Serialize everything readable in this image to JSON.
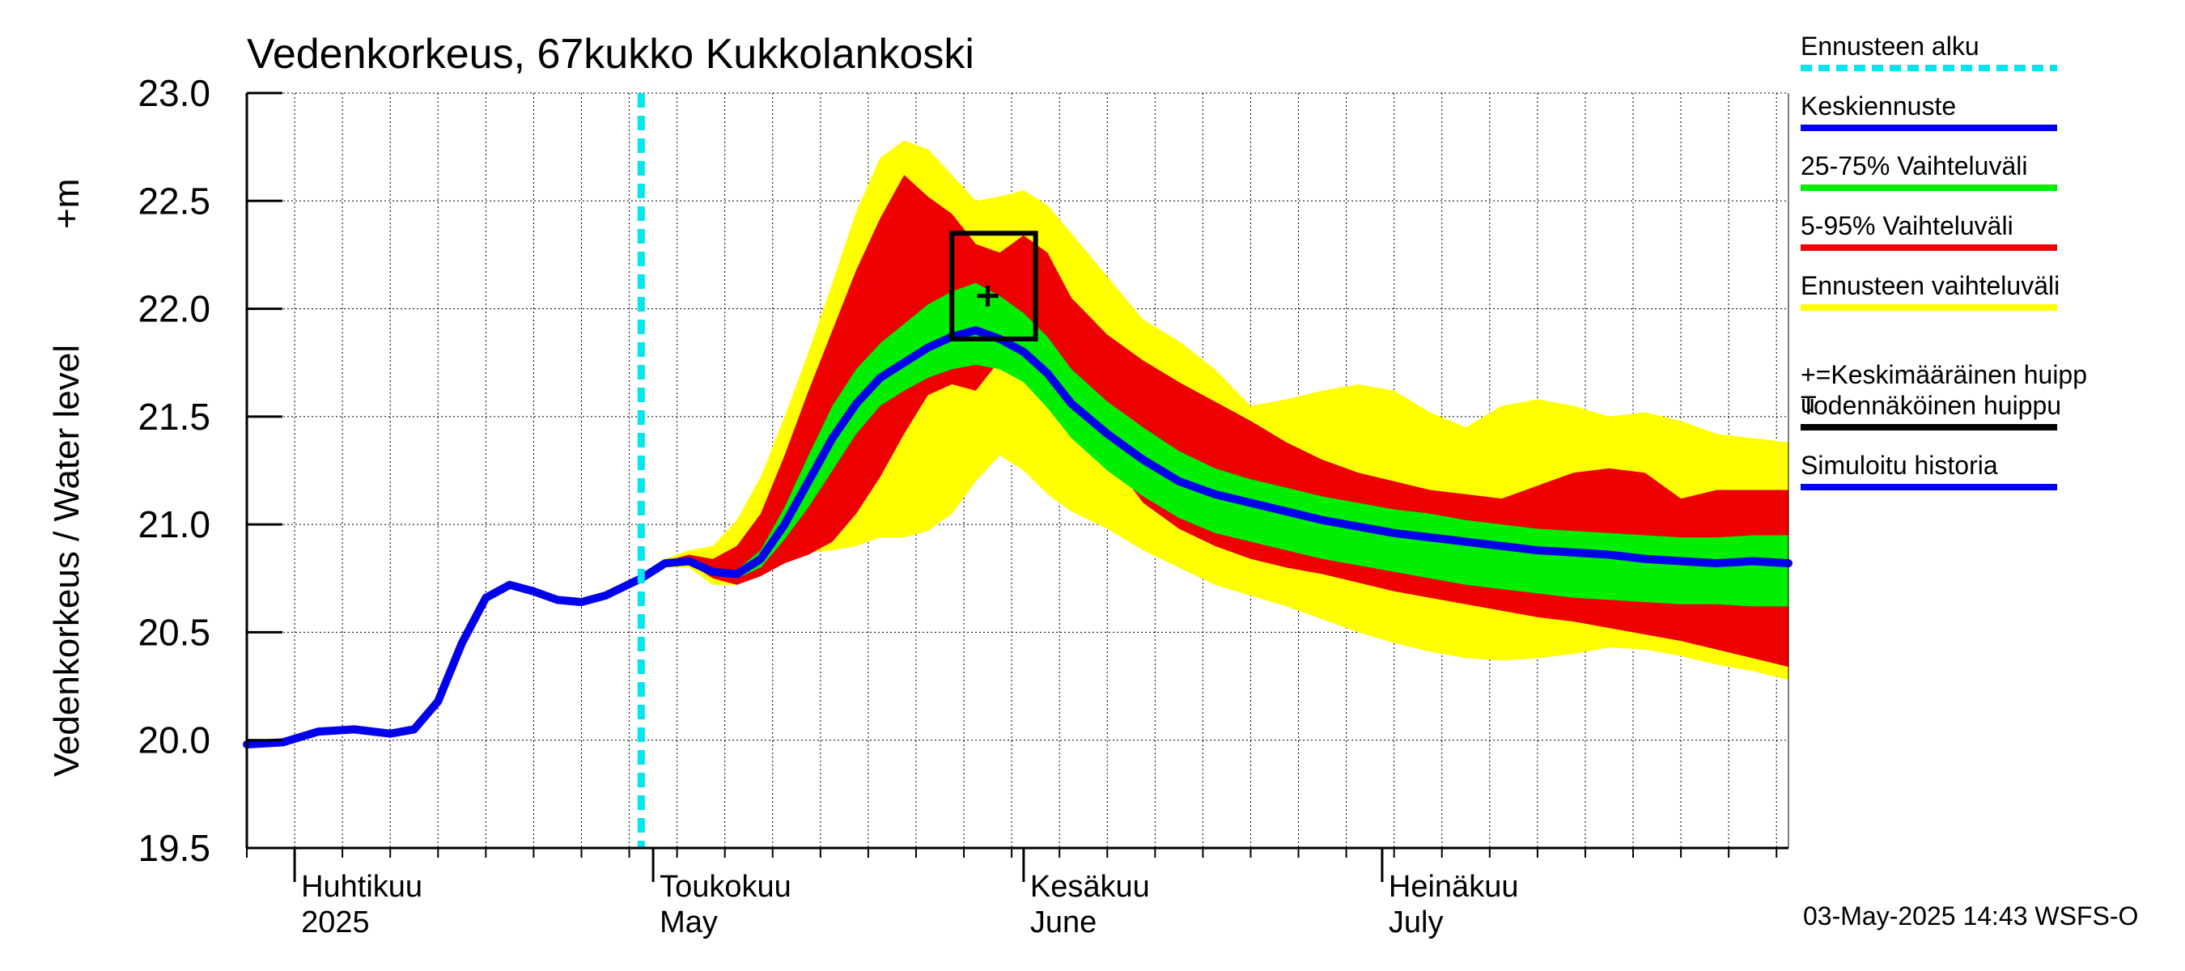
{
  "chart_data": {
    "type": "area",
    "title": "Vedenkorkeus, 67kukko Kukkolankoski",
    "ylabel": "Vedenkorkeus / Water level",
    "yunit": "+m",
    "ylim": [
      19.5,
      23.0
    ],
    "yticks": [
      "19.5",
      "20.0",
      "20.5",
      "21.0",
      "21.5",
      "22.0",
      "22.5",
      "23.0"
    ],
    "xlim": [
      "2025-03-28",
      "2025-08-04"
    ],
    "grid": true,
    "month_labels": [
      {
        "date": "2025-04-01",
        "fi": "Huhtikuu",
        "en": "2025"
      },
      {
        "date": "2025-05-01",
        "fi": "Toukokuu",
        "en": "May"
      },
      {
        "date": "2025-06-01",
        "fi": "Kesäkuu",
        "en": "June"
      },
      {
        "date": "2025-07-01",
        "fi": "Heinäkuu",
        "en": "July"
      }
    ],
    "forecast_start": "2025-04-30",
    "colors": {
      "forecast_start": "#00e5ee",
      "median": "#0000ee",
      "band_25_75": "#00ee00",
      "band_5_95": "#ee0000",
      "band_full": "#ffff00",
      "peak": "#000000",
      "history": "#0000ee"
    },
    "history": {
      "name": "Simuloitu historia",
      "x": [
        "2025-03-28",
        "2025-03-31",
        "2025-04-03",
        "2025-04-06",
        "2025-04-09",
        "2025-04-11",
        "2025-04-13",
        "2025-04-15",
        "2025-04-17",
        "2025-04-19",
        "2025-04-21",
        "2025-04-23",
        "2025-04-25",
        "2025-04-27",
        "2025-04-30"
      ],
      "y": [
        19.98,
        19.99,
        20.04,
        20.05,
        20.03,
        20.05,
        20.18,
        20.45,
        20.66,
        20.72,
        20.69,
        20.65,
        20.64,
        20.67,
        20.75
      ]
    },
    "forecast": {
      "x": [
        "2025-04-30",
        "2025-05-02",
        "2025-05-04",
        "2025-05-06",
        "2025-05-08",
        "2025-05-10",
        "2025-05-12",
        "2025-05-14",
        "2025-05-16",
        "2025-05-18",
        "2025-05-20",
        "2025-05-22",
        "2025-05-24",
        "2025-05-26",
        "2025-05-28",
        "2025-05-30",
        "2025-06-01",
        "2025-06-03",
        "2025-06-05",
        "2025-06-08",
        "2025-06-11",
        "2025-06-14",
        "2025-06-17",
        "2025-06-20",
        "2025-06-23",
        "2025-06-26",
        "2025-06-29",
        "2025-07-02",
        "2025-07-05",
        "2025-07-08",
        "2025-07-11",
        "2025-07-14",
        "2025-07-17",
        "2025-07-20",
        "2025-07-23",
        "2025-07-26",
        "2025-07-29",
        "2025-08-01",
        "2025-08-04"
      ],
      "median": [
        20.75,
        20.82,
        20.83,
        20.78,
        20.77,
        20.84,
        21.0,
        21.2,
        21.4,
        21.56,
        21.68,
        21.75,
        21.82,
        21.87,
        21.9,
        21.86,
        21.8,
        21.7,
        21.56,
        21.42,
        21.3,
        21.2,
        21.14,
        21.1,
        21.06,
        21.02,
        20.99,
        20.96,
        20.94,
        20.92,
        20.9,
        20.88,
        20.87,
        20.86,
        20.84,
        20.83,
        20.82,
        20.83,
        20.82
      ],
      "p25": [
        20.75,
        20.82,
        20.83,
        20.77,
        20.75,
        20.8,
        20.93,
        21.08,
        21.25,
        21.42,
        21.55,
        21.62,
        21.68,
        21.72,
        21.74,
        21.72,
        21.66,
        21.54,
        21.4,
        21.25,
        21.13,
        21.03,
        20.96,
        20.92,
        20.88,
        20.84,
        20.81,
        20.78,
        20.75,
        20.72,
        20.7,
        20.68,
        20.66,
        20.65,
        20.64,
        20.63,
        20.63,
        20.62,
        20.62
      ],
      "p75": [
        20.75,
        20.82,
        20.84,
        20.79,
        20.79,
        20.88,
        21.08,
        21.32,
        21.55,
        21.72,
        21.84,
        21.93,
        22.02,
        22.08,
        22.12,
        22.06,
        21.98,
        21.87,
        21.72,
        21.57,
        21.45,
        21.34,
        21.26,
        21.21,
        21.17,
        21.13,
        21.1,
        21.07,
        21.05,
        21.02,
        21.0,
        20.98,
        20.97,
        20.96,
        20.95,
        20.94,
        20.94,
        20.95,
        20.95
      ],
      "p5": [
        20.75,
        20.81,
        20.82,
        20.75,
        20.72,
        20.76,
        20.82,
        20.86,
        20.92,
        21.05,
        21.22,
        21.42,
        21.6,
        21.65,
        21.62,
        21.76,
        21.72,
        21.64,
        21.52,
        21.32,
        21.1,
        20.98,
        20.9,
        20.84,
        20.8,
        20.77,
        20.73,
        20.69,
        20.66,
        20.63,
        20.6,
        20.57,
        20.55,
        20.52,
        20.49,
        20.46,
        20.42,
        20.38,
        20.34
      ],
      "p95": [
        20.75,
        20.83,
        20.86,
        20.84,
        20.9,
        21.05,
        21.32,
        21.62,
        21.9,
        22.18,
        22.42,
        22.62,
        22.52,
        22.44,
        22.3,
        22.26,
        22.34,
        22.26,
        22.05,
        21.88,
        21.76,
        21.66,
        21.57,
        21.48,
        21.38,
        21.3,
        21.24,
        21.2,
        21.16,
        21.14,
        21.12,
        21.18,
        21.24,
        21.26,
        21.24,
        21.12,
        21.16,
        21.16,
        21.16
      ],
      "min": [
        20.75,
        20.8,
        20.8,
        20.72,
        20.72,
        20.82,
        20.85,
        20.87,
        20.88,
        20.9,
        20.94,
        20.94,
        20.97,
        21.05,
        21.2,
        21.32,
        21.25,
        21.14,
        21.06,
        20.98,
        20.88,
        20.8,
        20.72,
        20.67,
        20.62,
        20.56,
        20.5,
        20.45,
        20.41,
        20.38,
        20.37,
        20.38,
        20.4,
        20.43,
        20.42,
        20.39,
        20.35,
        20.32,
        20.28
      ],
      "max": [
        20.75,
        20.84,
        20.88,
        20.9,
        21.02,
        21.22,
        21.5,
        21.8,
        22.12,
        22.45,
        22.7,
        22.78,
        22.74,
        22.62,
        22.5,
        22.52,
        22.55,
        22.48,
        22.35,
        22.15,
        21.95,
        21.85,
        21.72,
        21.55,
        21.58,
        21.62,
        21.65,
        21.62,
        21.52,
        21.45,
        21.55,
        21.58,
        21.55,
        21.5,
        21.52,
        21.48,
        21.42,
        21.4,
        21.38
      ]
    },
    "mean_peak": {
      "date": "2025-05-29",
      "value": 22.06
    },
    "probable_peak_box": {
      "date_from": "2025-05-26",
      "date_to": "2025-06-02",
      "value_low": 21.86,
      "value_high": 22.35
    },
    "legend": [
      {
        "label": "Ennusteen alku",
        "kind": "dashed",
        "color": "#00e5ee"
      },
      {
        "label": "Keskiennuste",
        "kind": "line",
        "color": "#0000ee"
      },
      {
        "label": "25-75% Vaihteluväli",
        "kind": "line",
        "color": "#00ee00"
      },
      {
        "label": "5-95% Vaihteluväli",
        "kind": "line",
        "color": "#ee0000"
      },
      {
        "label": "Ennusteen vaihteluväli",
        "kind": "line",
        "color": "#ffff00"
      },
      {
        "label": "+=Keskimääräinen huipp",
        "label2": "u",
        "kind": "none",
        "color": "#000000"
      },
      {
        "label": "Todennäköinen huippu",
        "kind": "line",
        "color": "#000000"
      },
      {
        "label": "Simuloitu historia",
        "kind": "line",
        "color": "#0000ee"
      }
    ],
    "footer": "03-May-2025 14:43 WSFS-O"
  }
}
